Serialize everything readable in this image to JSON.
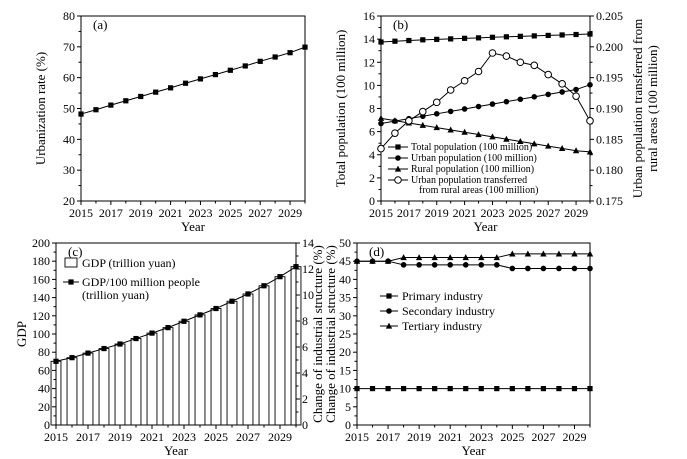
{
  "chart_data": [
    {
      "panel": "(a)",
      "type": "line",
      "xlabel": "Year",
      "ylabel": "Urbanization rate (%)",
      "xlim": [
        2015,
        2030
      ],
      "ylim": [
        20,
        80
      ],
      "xticks": [
        "2015",
        "2017",
        "2019",
        "2021",
        "2023",
        "2025",
        "2027",
        "2029"
      ],
      "yticks": [
        "20",
        "30",
        "40",
        "50",
        "60",
        "70",
        "80"
      ],
      "x": [
        2015,
        2016,
        2017,
        2018,
        2019,
        2020,
        2021,
        2022,
        2023,
        2024,
        2025,
        2026,
        2027,
        2028,
        2029,
        2030
      ],
      "series": [
        {
          "values": [
            48.2,
            49.6,
            51.1,
            52.5,
            53.9,
            55.3,
            56.7,
            58.2,
            59.6,
            61.0,
            62.4,
            63.8,
            65.3,
            66.7,
            68.1,
            69.9
          ],
          "marker": "square-filled"
        }
      ],
      "grid": false
    },
    {
      "panel": "(b)",
      "type": "line",
      "xlabel": "Year",
      "ylabel": "Total population (100 million)",
      "y2label": "Urban population transferred from rural areas (100 million)",
      "y2label_lines": [
        "Urban population transferred from",
        "rural areas (100 million)"
      ],
      "xlim": [
        2015,
        2030
      ],
      "ylim": [
        0,
        16
      ],
      "y2lim": [
        0.175,
        0.205
      ],
      "xticks": [
        "2015",
        "2017",
        "2019",
        "2021",
        "2023",
        "2025",
        "2027",
        "2029"
      ],
      "yticks": [
        "0",
        "2",
        "4",
        "6",
        "8",
        "10",
        "12",
        "14",
        "16"
      ],
      "y2ticks": [
        "0.175",
        "0.180",
        "0.185",
        "0.190",
        "0.195",
        "0.200",
        "0.205"
      ],
      "x": [
        2015,
        2016,
        2017,
        2018,
        2019,
        2020,
        2021,
        2022,
        2023,
        2024,
        2025,
        2026,
        2027,
        2028,
        2029,
        2030
      ],
      "series": [
        {
          "name": "Total population (100 million)",
          "axis": "left",
          "marker": "square-filled",
          "values": [
            13.75,
            13.82,
            13.88,
            13.94,
            13.98,
            14.02,
            14.07,
            14.11,
            14.16,
            14.2,
            14.24,
            14.28,
            14.32,
            14.36,
            14.4,
            14.44
          ]
        },
        {
          "name": "Urban population (100 million)",
          "axis": "left",
          "marker": "circle-filled",
          "values": [
            6.7,
            6.91,
            7.12,
            7.33,
            7.54,
            7.75,
            7.96,
            8.17,
            8.38,
            8.59,
            8.8,
            9.01,
            9.22,
            9.43,
            9.64,
            10.05
          ]
        },
        {
          "name": "Rural population (100 million)",
          "axis": "left",
          "marker": "triangle-filled",
          "values": [
            7.15,
            6.95,
            6.75,
            6.55,
            6.35,
            6.15,
            5.95,
            5.75,
            5.55,
            5.35,
            5.15,
            4.95,
            4.75,
            4.55,
            4.35,
            4.25
          ]
        },
        {
          "name": "Urban population transferred from rural areas (100 million)",
          "name_lines": [
            "Urban population transferred",
            "from rural areas (100 million)"
          ],
          "axis": "right",
          "marker": "circle-open",
          "values": [
            0.1835,
            0.186,
            0.188,
            0.1895,
            0.191,
            0.193,
            0.1945,
            0.196,
            0.199,
            0.1985,
            0.1975,
            0.197,
            0.1955,
            0.194,
            0.192,
            0.188
          ]
        }
      ],
      "legend": "bottom-left",
      "grid": false
    },
    {
      "panel": "(c)",
      "type": "bar",
      "xlabel": "Year",
      "ylabel": "GDP",
      "y2label": "Change of industrial structure (%)",
      "xlim": [
        2015,
        2030
      ],
      "ylim": [
        0,
        200
      ],
      "y2lim": [
        0,
        14
      ],
      "xticks": [
        "2015",
        "2017",
        "2019",
        "2021",
        "2023",
        "2025",
        "2027",
        "2029"
      ],
      "yticks": [
        "0",
        "20",
        "40",
        "60",
        "80",
        "100",
        "120",
        "140",
        "160",
        "180",
        "200"
      ],
      "y2ticks": [
        "0",
        "2",
        "4",
        "6",
        "8",
        "10",
        "12",
        "14"
      ],
      "x": [
        2015,
        2016,
        2017,
        2018,
        2019,
        2020,
        2021,
        2022,
        2023,
        2024,
        2025,
        2026,
        2027,
        2028,
        2029,
        2030
      ],
      "series": [
        {
          "name": "GDP (trillion yuan)",
          "kind": "bar",
          "axis": "left",
          "values": [
            70,
            74,
            79,
            84,
            89,
            95,
            101,
            107,
            114,
            121,
            128,
            136,
            144,
            153,
            163,
            174
          ]
        },
        {
          "name": "GDP/100 million people (trillion yuan)",
          "name_lines": [
            "GDP/100 million people",
            "(trillion yuan)"
          ],
          "kind": "line",
          "axis": "left",
          "marker": "square-filled",
          "values": [
            70,
            74,
            79,
            84,
            89,
            95,
            101,
            107,
            114,
            121,
            128,
            136,
            144,
            153,
            163,
            174
          ]
        }
      ],
      "legend": "top-left",
      "grid": false
    },
    {
      "panel": "(d)",
      "type": "line",
      "xlabel": "Year",
      "ylabel": "Change of industrial structure (%)",
      "xlim": [
        2015,
        2030
      ],
      "ylim": [
        0,
        50
      ],
      "xticks": [
        "2015",
        "2017",
        "2019",
        "2021",
        "2023",
        "2025",
        "2027",
        "2029"
      ],
      "yticks": [
        "0",
        "5",
        "10",
        "15",
        "20",
        "25",
        "30",
        "35",
        "40",
        "45",
        "50"
      ],
      "x": [
        2015,
        2016,
        2017,
        2018,
        2019,
        2020,
        2021,
        2022,
        2023,
        2024,
        2025,
        2026,
        2027,
        2028,
        2029,
        2030
      ],
      "series": [
        {
          "name": "Primary industry",
          "marker": "square-filled",
          "values": [
            10,
            10,
            10,
            10,
            10,
            10,
            10,
            10,
            10,
            10,
            10,
            10,
            10,
            10,
            10,
            10
          ]
        },
        {
          "name": "Secondary industry",
          "marker": "circle-filled",
          "values": [
            45,
            45,
            45,
            44,
            44,
            44,
            44,
            44,
            44,
            44,
            43,
            43,
            43,
            43,
            43,
            43
          ]
        },
        {
          "name": "Tertiary industry",
          "marker": "triangle-filled",
          "values": [
            45,
            45,
            45,
            46,
            46,
            46,
            46,
            46,
            46,
            46,
            47,
            47,
            47,
            47,
            47,
            47
          ]
        }
      ],
      "legend": "middle-left",
      "grid": false
    }
  ]
}
